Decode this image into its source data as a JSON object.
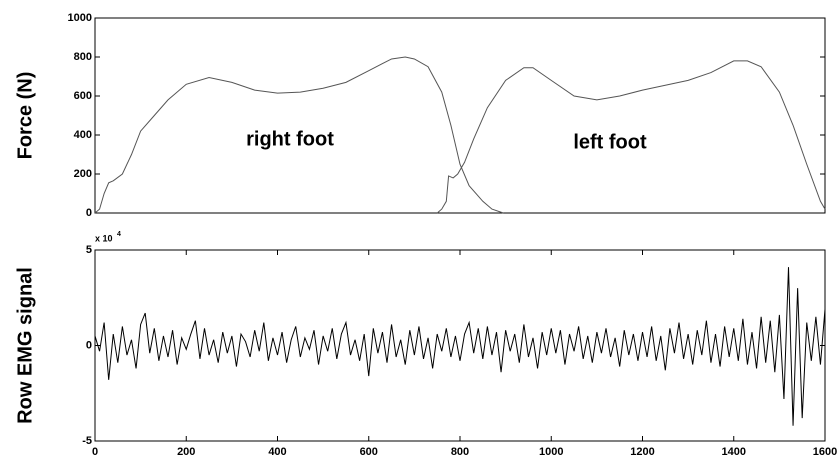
{
  "chart_data": [
    {
      "type": "line",
      "ylabel": "Force (N)",
      "xlim": [
        0,
        1600
      ],
      "ylim": [
        0,
        1000
      ],
      "yticks": [
        0,
        200,
        400,
        600,
        800,
        1000
      ],
      "annotations": [
        "right foot",
        "left foot"
      ],
      "series": [
        {
          "color": "#555555",
          "x": [
            0,
            10,
            20,
            30,
            40,
            60,
            80,
            100,
            130,
            160,
            200,
            250,
            300,
            350,
            400,
            450,
            500,
            550,
            600,
            650,
            680,
            700,
            730,
            760,
            780,
            800,
            820,
            850,
            870,
            895
          ],
          "values": [
            0,
            20,
            100,
            155,
            165,
            200,
            300,
            420,
            500,
            580,
            660,
            695,
            670,
            630,
            615,
            620,
            640,
            670,
            730,
            790,
            800,
            790,
            750,
            620,
            450,
            250,
            140,
            60,
            20,
            0
          ]
        },
        {
          "color": "#555555",
          "x": [
            750,
            760,
            770,
            775,
            785,
            795,
            810,
            830,
            860,
            900,
            940,
            960,
            1000,
            1050,
            1100,
            1150,
            1200,
            1300,
            1350,
            1400,
            1430,
            1460,
            1500,
            1530,
            1560,
            1590,
            1600
          ],
          "values": [
            0,
            20,
            60,
            190,
            180,
            200,
            260,
            380,
            540,
            680,
            745,
            745,
            680,
            600,
            580,
            600,
            630,
            680,
            720,
            780,
            780,
            750,
            620,
            450,
            250,
            60,
            20
          ]
        }
      ]
    },
    {
      "type": "line",
      "ylabel": "Row EMG signal",
      "scale_text": "x 10",
      "scale_exponent": "4",
      "xlim": [
        0,
        1600
      ],
      "ylim": [
        -5,
        5
      ],
      "yticks": [
        -5,
        0,
        5
      ],
      "xticks": [
        0,
        200,
        400,
        600,
        800,
        1000,
        1200,
        1400,
        1600
      ],
      "series": [
        {
          "color": "#000000",
          "x": [
            0,
            10,
            20,
            30,
            40,
            50,
            60,
            70,
            80,
            90,
            100,
            110,
            120,
            130,
            140,
            150,
            160,
            170,
            180,
            190,
            200,
            210,
            220,
            230,
            240,
            250,
            260,
            270,
            280,
            290,
            300,
            310,
            320,
            330,
            340,
            350,
            360,
            370,
            380,
            390,
            400,
            410,
            420,
            430,
            440,
            450,
            460,
            470,
            480,
            490,
            500,
            510,
            520,
            530,
            540,
            550,
            560,
            570,
            580,
            590,
            600,
            610,
            620,
            630,
            640,
            650,
            660,
            670,
            680,
            690,
            700,
            710,
            720,
            730,
            740,
            750,
            760,
            770,
            780,
            790,
            800,
            810,
            820,
            830,
            840,
            850,
            860,
            870,
            880,
            890,
            900,
            910,
            920,
            930,
            940,
            950,
            960,
            970,
            980,
            990,
            1000,
            1010,
            1020,
            1030,
            1040,
            1050,
            1060,
            1070,
            1080,
            1090,
            1100,
            1110,
            1120,
            1130,
            1140,
            1150,
            1160,
            1170,
            1180,
            1190,
            1200,
            1210,
            1220,
            1230,
            1240,
            1250,
            1260,
            1270,
            1280,
            1290,
            1300,
            1310,
            1320,
            1330,
            1340,
            1350,
            1360,
            1370,
            1380,
            1390,
            1400,
            1410,
            1420,
            1430,
            1440,
            1450,
            1460,
            1470,
            1480,
            1490,
            1500,
            1510,
            1520,
            1530,
            1540,
            1550,
            1560,
            1570,
            1580,
            1590,
            1600
          ],
          "values": [
            0.5,
            -0.3,
            1.2,
            -1.8,
            0.6,
            -0.9,
            1.0,
            -0.5,
            0.3,
            -1.2,
            1.1,
            1.7,
            -0.4,
            0.9,
            -0.8,
            0.5,
            -0.6,
            0.8,
            -1.0,
            0.4,
            -0.2,
            0.6,
            1.3,
            -0.7,
            0.9,
            -0.5,
            0.3,
            -0.9,
            0.7,
            -0.4,
            0.5,
            -1.1,
            0.6,
            0.2,
            -0.6,
            0.8,
            -0.3,
            1.2,
            -0.8,
            0.4,
            -0.5,
            0.7,
            -0.9,
            0.3,
            1.0,
            -0.6,
            0.4,
            -0.2,
            0.8,
            -1.0,
            0.5,
            -0.3,
            0.9,
            -0.7,
            0.6,
            1.2,
            -0.5,
            0.3,
            -0.8,
            0.6,
            -1.6,
            0.9,
            -0.4,
            0.7,
            -0.9,
            1.1,
            -0.6,
            0.3,
            -1.0,
            0.8,
            -0.5,
            1.0,
            -0.7,
            0.4,
            -1.2,
            0.6,
            -0.3,
            0.9,
            -0.6,
            0.5,
            -0.8,
            0.6,
            1.2,
            -0.4,
            0.9,
            -0.7,
            1.0,
            -0.5,
            0.7,
            -1.4,
            0.8,
            -0.3,
            0.6,
            -0.9,
            1.1,
            -0.6,
            0.4,
            -1.2,
            0.7,
            -0.5,
            0.9,
            -0.4,
            0.8,
            -1.0,
            0.6,
            -0.3,
            1.0,
            -0.7,
            0.5,
            -0.9,
            0.7,
            -0.4,
            0.9,
            -0.6,
            0.4,
            -1.1,
            0.8,
            -0.5,
            0.6,
            -0.8,
            0.7,
            -0.6,
            1.0,
            -0.8,
            0.5,
            -1.3,
            0.9,
            -0.4,
            1.2,
            -0.7,
            0.6,
            -1.0,
            0.8,
            -0.5,
            1.3,
            -0.9,
            0.6,
            -1.1,
            1.0,
            -0.6,
            0.9,
            -0.8,
            1.4,
            -1.0,
            0.7,
            -1.2,
            1.5,
            -0.9,
            1.3,
            -1.4,
            1.6,
            -2.8,
            4.1,
            -4.2,
            3.0,
            -3.8,
            1.2,
            -0.8,
            1.5,
            -1.0,
            1.9
          ]
        }
      ]
    }
  ]
}
